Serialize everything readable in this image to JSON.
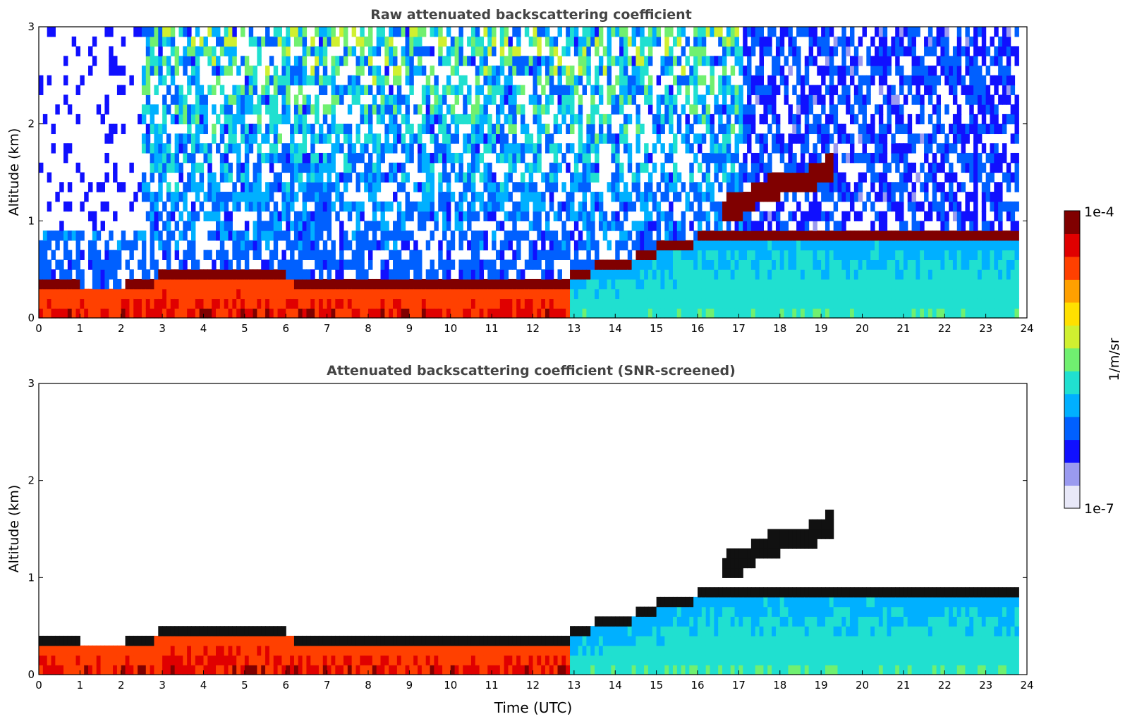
{
  "chart_data": [
    {
      "type": "heatmap",
      "title": "Raw attenuated backscattering coefficient",
      "xlabel": "",
      "ylabel": "Altitude (km)",
      "xlim": [
        0,
        24
      ],
      "ylim": [
        0,
        3
      ],
      "x_ticks": [
        "0",
        "1",
        "2",
        "3",
        "4",
        "5",
        "6",
        "7",
        "8",
        "9",
        "10",
        "11",
        "12",
        "13",
        "14",
        "15",
        "16",
        "17",
        "18",
        "19",
        "20",
        "21",
        "22",
        "23",
        "24"
      ],
      "y_ticks": [
        "0",
        "1",
        "2",
        "3"
      ],
      "x_tick_values": [
        0,
        1,
        2,
        3,
        4,
        5,
        6,
        7,
        8,
        9,
        10,
        11,
        12,
        13,
        14,
        15,
        16,
        17,
        18,
        19,
        20,
        21,
        22,
        23,
        24
      ],
      "y_tick_values": [
        0,
        1,
        2,
        3
      ],
      "data_end_time": 23.8,
      "boundary_layer_top_km": {
        "time": [
          0,
          1,
          2,
          2.5,
          3,
          4,
          5,
          6,
          7,
          8,
          9,
          10,
          11,
          12,
          12.8,
          13,
          14,
          14.5,
          15,
          16,
          17
        ],
        "value": [
          0.28,
          0.26,
          0.25,
          0.3,
          0.38,
          0.42,
          0.42,
          0.36,
          0.3,
          0.28,
          0.27,
          0.26,
          0.27,
          0.29,
          0.32,
          0.42,
          0.5,
          0.56,
          0.66,
          0.76,
          0.82
        ]
      },
      "elevated_layer_km": {
        "time": [
          16.5,
          17,
          17.5,
          18,
          18.5,
          19,
          19.3
        ],
        "value": [
          1.12,
          1.16,
          1.3,
          1.38,
          1.4,
          1.5,
          1.6
        ]
      },
      "screened": false
    },
    {
      "type": "heatmap",
      "title": "Attenuated backscattering coefficient (SNR-screened)",
      "xlabel": "Time (UTC)",
      "ylabel": "Altitude (km)",
      "xlim": [
        0,
        24
      ],
      "ylim": [
        0,
        3
      ],
      "x_ticks": [
        "0",
        "1",
        "2",
        "3",
        "4",
        "5",
        "6",
        "7",
        "8",
        "9",
        "10",
        "11",
        "12",
        "13",
        "14",
        "15",
        "16",
        "17",
        "18",
        "19",
        "20",
        "21",
        "22",
        "23",
        "24"
      ],
      "y_ticks": [
        "0",
        "1",
        "2",
        "3"
      ],
      "x_tick_values": [
        0,
        1,
        2,
        3,
        4,
        5,
        6,
        7,
        8,
        9,
        10,
        11,
        12,
        13,
        14,
        15,
        16,
        17,
        18,
        19,
        20,
        21,
        22,
        23,
        24
      ],
      "y_tick_values": [
        0,
        1,
        2,
        3
      ],
      "data_end_time": 23.8,
      "boundary_layer_top_km": {
        "time": [
          0,
          1,
          2,
          2.5,
          3,
          4,
          5,
          6,
          7,
          8,
          9,
          10,
          11,
          12,
          12.8,
          13,
          14,
          14.5,
          15,
          16,
          17
        ],
        "value": [
          0.28,
          0.26,
          0.25,
          0.3,
          0.38,
          0.42,
          0.42,
          0.36,
          0.3,
          0.28,
          0.27,
          0.26,
          0.27,
          0.29,
          0.32,
          0.42,
          0.5,
          0.56,
          0.66,
          0.76,
          0.82
        ]
      },
      "elevated_layer_km": {
        "time": [
          16.5,
          17,
          17.5,
          18,
          18.5,
          19,
          19.3
        ],
        "value": [
          1.12,
          1.16,
          1.3,
          1.38,
          1.4,
          1.5,
          1.6
        ]
      },
      "screened": true
    }
  ],
  "colorbar": {
    "label": "1/m/sr",
    "max_label": "1e-4",
    "min_label": "1e-7",
    "colors": [
      "#e8e8f8",
      "#9a9af0",
      "#1010ff",
      "#0060ff",
      "#00b0ff",
      "#20e0d0",
      "#70f070",
      "#d0f030",
      "#ffe000",
      "#ffa000",
      "#ff4000",
      "#e00000",
      "#800000"
    ]
  }
}
